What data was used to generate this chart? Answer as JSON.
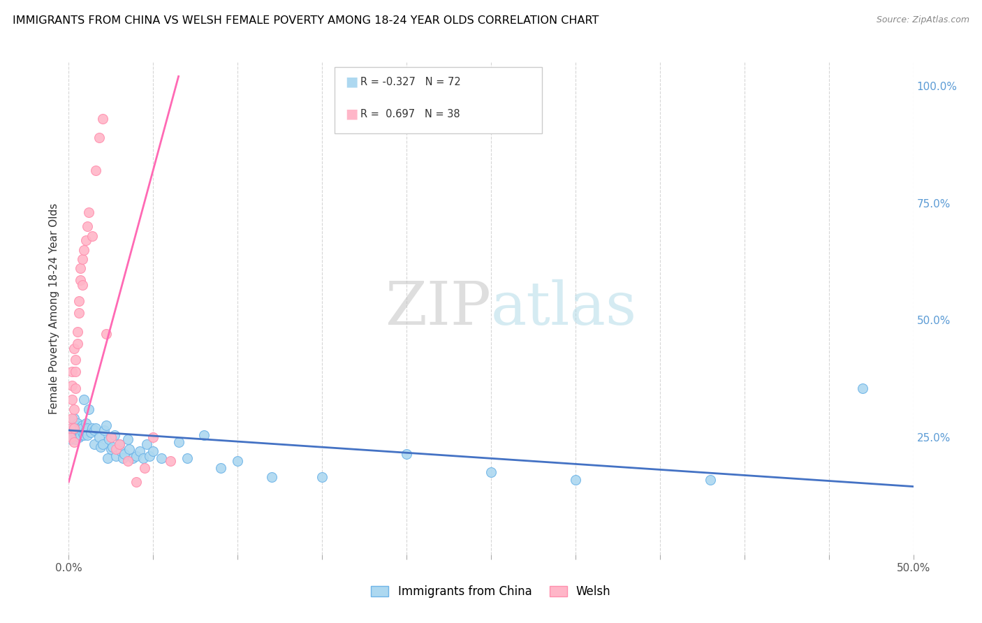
{
  "title": "IMMIGRANTS FROM CHINA VS WELSH FEMALE POVERTY AMONG 18-24 YEAR OLDS CORRELATION CHART",
  "source": "Source: ZipAtlas.com",
  "ylabel": "Female Poverty Among 18-24 Year Olds",
  "right_yticks": [
    0.0,
    0.25,
    0.5,
    0.75,
    1.0
  ],
  "right_yticklabels": [
    "",
    "25.0%",
    "50.0%",
    "75.0%",
    "100.0%"
  ],
  "watermark_zip": "ZIP",
  "watermark_atlas": "atlas",
  "legend": {
    "series1_label": "Immigrants from China",
    "series1_R": "-0.327",
    "series1_N": "72",
    "series2_label": "Welsh",
    "series2_R": "0.697",
    "series2_N": "38"
  },
  "blue_color": "#ADD8F0",
  "blue_edge_color": "#6EB4E8",
  "blue_line_color": "#4472C4",
  "pink_color": "#FFB6C8",
  "pink_edge_color": "#FF8FAE",
  "pink_line_color": "#FF69B4",
  "blue_scatter_x": [
    0.001,
    0.001,
    0.002,
    0.002,
    0.003,
    0.003,
    0.003,
    0.004,
    0.004,
    0.004,
    0.005,
    0.005,
    0.005,
    0.006,
    0.006,
    0.006,
    0.006,
    0.007,
    0.007,
    0.007,
    0.008,
    0.008,
    0.008,
    0.009,
    0.009,
    0.01,
    0.01,
    0.011,
    0.011,
    0.012,
    0.013,
    0.014,
    0.015,
    0.015,
    0.016,
    0.018,
    0.019,
    0.02,
    0.021,
    0.022,
    0.023,
    0.024,
    0.025,
    0.026,
    0.027,
    0.028,
    0.03,
    0.031,
    0.032,
    0.033,
    0.035,
    0.036,
    0.038,
    0.04,
    0.042,
    0.044,
    0.046,
    0.048,
    0.05,
    0.055,
    0.065,
    0.07,
    0.08,
    0.09,
    0.1,
    0.12,
    0.15,
    0.2,
    0.25,
    0.3,
    0.38,
    0.47
  ],
  "blue_scatter_y": [
    0.265,
    0.245,
    0.27,
    0.25,
    0.29,
    0.27,
    0.26,
    0.275,
    0.26,
    0.245,
    0.28,
    0.265,
    0.255,
    0.27,
    0.26,
    0.25,
    0.265,
    0.27,
    0.26,
    0.255,
    0.275,
    0.26,
    0.27,
    0.33,
    0.255,
    0.28,
    0.265,
    0.27,
    0.255,
    0.31,
    0.26,
    0.27,
    0.235,
    0.265,
    0.27,
    0.25,
    0.23,
    0.235,
    0.265,
    0.275,
    0.205,
    0.245,
    0.225,
    0.23,
    0.255,
    0.21,
    0.235,
    0.22,
    0.205,
    0.215,
    0.245,
    0.225,
    0.205,
    0.21,
    0.22,
    0.205,
    0.235,
    0.21,
    0.22,
    0.205,
    0.24,
    0.205,
    0.255,
    0.185,
    0.2,
    0.165,
    0.165,
    0.215,
    0.175,
    0.16,
    0.16,
    0.355
  ],
  "pink_scatter_x": [
    0.001,
    0.001,
    0.002,
    0.002,
    0.002,
    0.002,
    0.003,
    0.003,
    0.003,
    0.003,
    0.004,
    0.004,
    0.004,
    0.005,
    0.005,
    0.006,
    0.006,
    0.007,
    0.007,
    0.008,
    0.008,
    0.009,
    0.01,
    0.011,
    0.012,
    0.014,
    0.016,
    0.018,
    0.02,
    0.022,
    0.025,
    0.028,
    0.03,
    0.035,
    0.04,
    0.045,
    0.05,
    0.06
  ],
  "pink_scatter_y": [
    0.25,
    0.27,
    0.29,
    0.33,
    0.36,
    0.39,
    0.27,
    0.31,
    0.44,
    0.24,
    0.39,
    0.355,
    0.415,
    0.475,
    0.45,
    0.515,
    0.54,
    0.585,
    0.61,
    0.63,
    0.575,
    0.65,
    0.67,
    0.7,
    0.73,
    0.68,
    0.82,
    0.89,
    0.93,
    0.47,
    0.25,
    0.225,
    0.235,
    0.2,
    0.155,
    0.185,
    0.25,
    0.2
  ],
  "blue_trend_x": [
    0.0,
    0.5
  ],
  "blue_trend_y": [
    0.265,
    0.145
  ],
  "pink_trend_x": [
    0.0,
    0.065
  ],
  "pink_trend_y": [
    0.155,
    1.02
  ],
  "xlim": [
    0.0,
    0.5
  ],
  "ylim": [
    0.0,
    1.05
  ],
  "xtick_positions": [
    0.0,
    0.05,
    0.1,
    0.15,
    0.2,
    0.25,
    0.3,
    0.35,
    0.4,
    0.45,
    0.5
  ],
  "figsize": [
    14.06,
    8.92
  ],
  "dpi": 100
}
